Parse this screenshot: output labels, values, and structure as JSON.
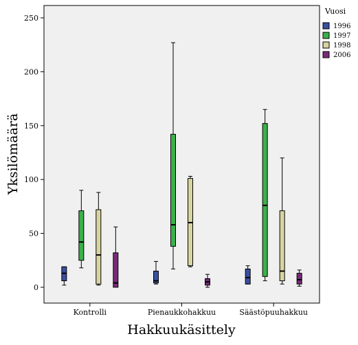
{
  "chart_data": {
    "type": "boxplot",
    "title": "",
    "xlabel": "Hakkuukäsittely",
    "ylabel": "Yksilömäärä",
    "ylim": [
      0,
      265
    ],
    "yticks": [
      0,
      50,
      100,
      150,
      200,
      250
    ],
    "grid": false,
    "legend_position": "right",
    "legend_title": "Vuosi",
    "categories": [
      "Kontrolli",
      "Pienaukkohakkuu",
      "Säästöpuuhakkuu"
    ],
    "series": [
      {
        "name": "1996",
        "color": "#3a4fa0",
        "boxes": [
          {
            "min": 2,
            "q1": 6,
            "median": 13,
            "q3": 19,
            "max": 19
          },
          {
            "min": 3,
            "q1": 4,
            "median": 6,
            "q3": 15,
            "max": 24
          },
          {
            "min": 3,
            "q1": 3,
            "median": 9,
            "q3": 17,
            "max": 20
          }
        ]
      },
      {
        "name": "1997",
        "color": "#3cb04a",
        "boxes": [
          {
            "min": 18,
            "q1": 25,
            "median": 42,
            "q3": 71,
            "max": 90
          },
          {
            "min": 17,
            "q1": 38,
            "median": 58,
            "q3": 142,
            "max": 227
          },
          {
            "min": 6,
            "q1": 10,
            "median": 76,
            "q3": 152,
            "max": 165
          }
        ]
      },
      {
        "name": "1998",
        "color": "#d8d4a2",
        "boxes": [
          {
            "min": 2,
            "q1": 3,
            "median": 30,
            "q3": 72,
            "max": 88
          },
          {
            "min": 19,
            "q1": 20,
            "median": 60,
            "q3": 101,
            "max": 103
          },
          {
            "min": 3,
            "q1": 6,
            "median": 15,
            "q3": 71,
            "max": 120
          }
        ]
      },
      {
        "name": "2006",
        "color": "#7a2a7a",
        "boxes": [
          {
            "min": 0,
            "q1": 0,
            "median": 4,
            "q3": 32,
            "max": 56
          },
          {
            "min": 0,
            "q1": 2,
            "median": 5,
            "q3": 8,
            "max": 12
          },
          {
            "min": 1,
            "q1": 3,
            "median": 7,
            "q3": 13,
            "max": 16
          }
        ]
      }
    ]
  }
}
